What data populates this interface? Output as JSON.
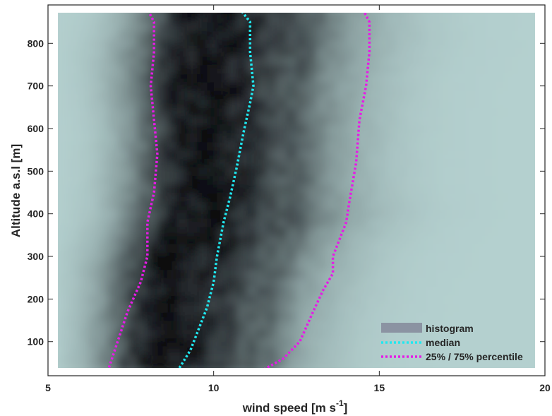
{
  "chart_data": {
    "type": "heatmap",
    "title": "",
    "xlabel": "wind speed [m s",
    "xlabel_superscript": "-1",
    "xlabel_suffix": "]",
    "ylabel": "Altitude a.s.l [m]",
    "xlim": [
      5,
      20
    ],
    "ylim": [
      20,
      890
    ],
    "x_ticks": [
      5,
      10,
      15,
      20
    ],
    "y_ticks": [
      100,
      200,
      300,
      400,
      500,
      600,
      700,
      800
    ],
    "grid": false,
    "legend_position": "bottom-right",
    "colors": {
      "histogram_low": "#b4d0cf",
      "histogram_high": "#0a0a0f",
      "median": "#20e8f0",
      "percentile": "#e61be6",
      "legend_histogram": "#8b93a2"
    },
    "series": [
      {
        "name": "histogram",
        "style": "filled",
        "altitudes": [
          30,
          100,
          200,
          300,
          400,
          500,
          600,
          700,
          800,
          880
        ],
        "dark_center_x": [
          8.3,
          8.4,
          8.6,
          8.8,
          9.4,
          9.4,
          9.5,
          9.4,
          9.6,
          9.8
        ],
        "dark_width": [
          2.3,
          2.3,
          2.4,
          2.5,
          2.6,
          2.5,
          2.5,
          2.6,
          2.7,
          2.6
        ]
      },
      {
        "name": "median",
        "style": "dotted",
        "points": [
          {
            "x": 8.9,
            "y": 30
          },
          {
            "x": 9.3,
            "y": 80
          },
          {
            "x": 9.5,
            "y": 120
          },
          {
            "x": 9.8,
            "y": 180
          },
          {
            "x": 10.0,
            "y": 240
          },
          {
            "x": 10.1,
            "y": 300
          },
          {
            "x": 10.3,
            "y": 380
          },
          {
            "x": 10.5,
            "y": 440
          },
          {
            "x": 10.7,
            "y": 510
          },
          {
            "x": 10.9,
            "y": 590
          },
          {
            "x": 11.1,
            "y": 660
          },
          {
            "x": 11.2,
            "y": 700
          },
          {
            "x": 11.1,
            "y": 780
          },
          {
            "x": 11.1,
            "y": 850
          },
          {
            "x": 10.8,
            "y": 880
          }
        ]
      },
      {
        "name": "25% / 75% percentile",
        "style": "dotted",
        "lines": [
          [
            {
              "x": 6.8,
              "y": 30
            },
            {
              "x": 7.1,
              "y": 100
            },
            {
              "x": 7.4,
              "y": 170
            },
            {
              "x": 7.8,
              "y": 240
            },
            {
              "x": 8.0,
              "y": 300
            },
            {
              "x": 8.0,
              "y": 380
            },
            {
              "x": 8.2,
              "y": 450
            },
            {
              "x": 8.3,
              "y": 540
            },
            {
              "x": 8.2,
              "y": 620
            },
            {
              "x": 8.1,
              "y": 700
            },
            {
              "x": 8.2,
              "y": 780
            },
            {
              "x": 8.2,
              "y": 850
            },
            {
              "x": 8.0,
              "y": 880
            }
          ],
          [
            {
              "x": 11.4,
              "y": 30
            },
            {
              "x": 12.1,
              "y": 60
            },
            {
              "x": 12.6,
              "y": 100
            },
            {
              "x": 13.0,
              "y": 170
            },
            {
              "x": 13.3,
              "y": 220
            },
            {
              "x": 13.6,
              "y": 260
            },
            {
              "x": 13.6,
              "y": 300
            },
            {
              "x": 14.0,
              "y": 380
            },
            {
              "x": 14.1,
              "y": 430
            },
            {
              "x": 14.3,
              "y": 520
            },
            {
              "x": 14.4,
              "y": 620
            },
            {
              "x": 14.6,
              "y": 700
            },
            {
              "x": 14.7,
              "y": 780
            },
            {
              "x": 14.7,
              "y": 850
            },
            {
              "x": 14.5,
              "y": 880
            }
          ]
        ]
      }
    ]
  }
}
